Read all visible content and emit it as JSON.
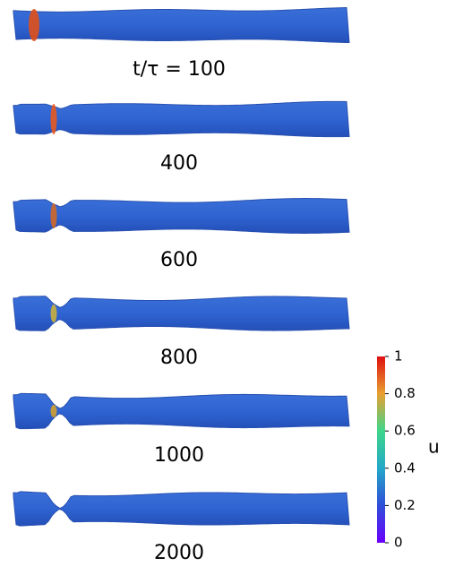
{
  "panels": [
    {
      "label": "t/τ = 100"
    },
    {
      "label": "400"
    },
    {
      "label": "600"
    },
    {
      "label": "800"
    },
    {
      "label": "1000"
    },
    {
      "label": "2000"
    }
  ],
  "colorbar": {
    "label": "u",
    "ticks": [
      0,
      0.2,
      0.4,
      0.6,
      0.8,
      1
    ]
  }
}
